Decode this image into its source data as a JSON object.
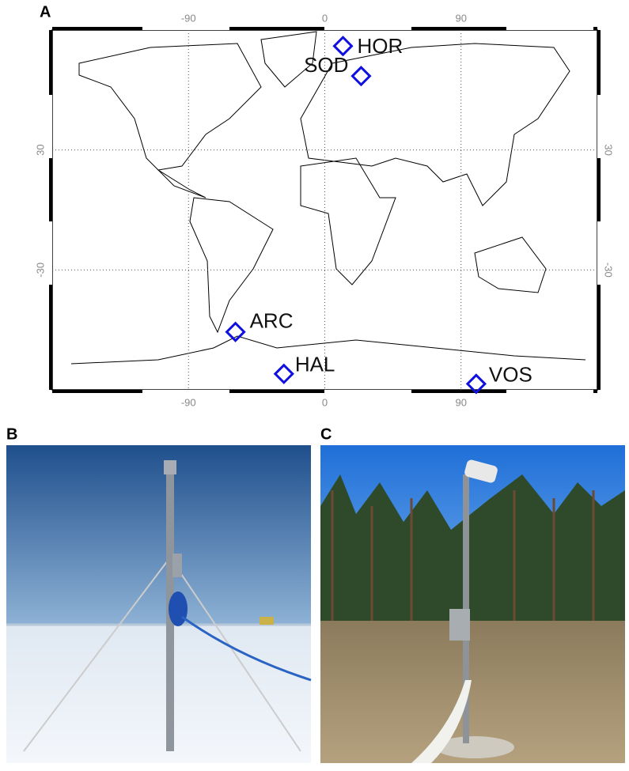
{
  "panels": [
    "A",
    "B",
    "C"
  ],
  "map": {
    "xlim": [
      -180,
      180
    ],
    "ylim": [
      -90,
      90
    ],
    "xticks": [
      -90,
      0,
      90
    ],
    "yticks": [
      -30,
      30
    ],
    "grid": true,
    "marker_color": "#1010e0",
    "stations": [
      {
        "name": "HOR",
        "lon": 12,
        "lat": 82
      },
      {
        "name": "SOD",
        "lon": 24,
        "lat": 67
      },
      {
        "name": "ARC",
        "lon": -59,
        "lat": -61
      },
      {
        "name": "HAL",
        "lon": -27,
        "lat": -82
      },
      {
        "name": "VOS",
        "lon": 100,
        "lat": -87
      }
    ]
  }
}
